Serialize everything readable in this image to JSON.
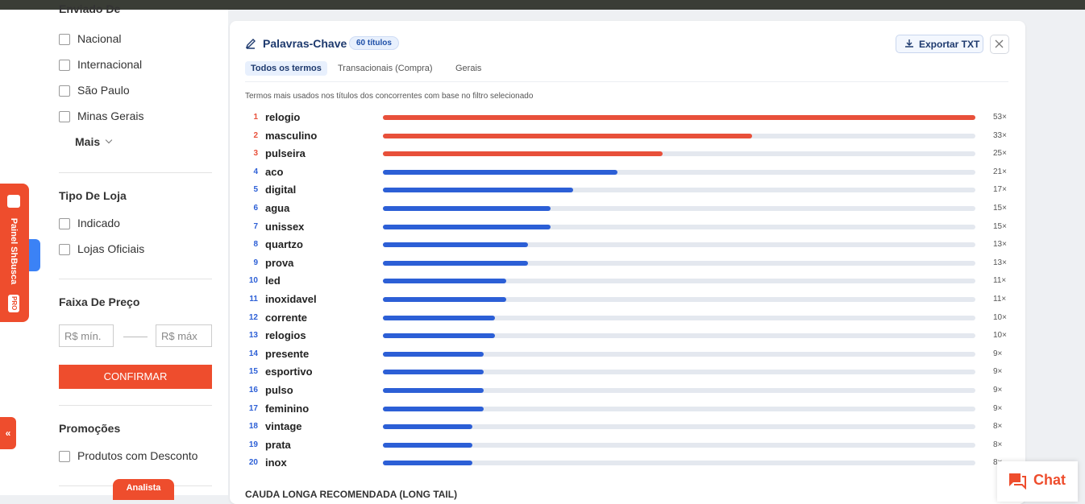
{
  "sidebar": {
    "shipped_from": {
      "title": "Enviado De",
      "options": [
        "Nacional",
        "Internacional",
        "São Paulo",
        "Minas Gerais"
      ],
      "more": "Mais"
    },
    "store_type": {
      "title": "Tipo De Loja",
      "options": [
        "Indicado",
        "Lojas Oficiais"
      ]
    },
    "price": {
      "title": "Faixa De Preço",
      "min_placeholder": "R$ mín.",
      "max_placeholder": "R$ máx",
      "button": "CONFIRMAR"
    },
    "promotions": {
      "title": "Promoções",
      "options": [
        "Produtos com Desconto"
      ]
    },
    "analyst_tab": "Analista"
  },
  "side_panel": {
    "label": "Painel ShBusca",
    "badge": "PRO",
    "collapse": "«"
  },
  "panel": {
    "title": "Palavras-Chave",
    "badge": "60 títulos",
    "export": "Exportar TXT",
    "tabs": [
      "Todos os termos",
      "Transacionais (Compra)",
      "Gerais"
    ],
    "description": "Termos mais usados nos títulos dos concorrentes com base no filtro selecionado",
    "keywords": [
      {
        "rank": "1",
        "term": "relogio",
        "count": 53,
        "count_label": "53×",
        "color": "#e8503a"
      },
      {
        "rank": "2",
        "term": "masculino",
        "count": 33,
        "count_label": "33×",
        "color": "#e8503a"
      },
      {
        "rank": "3",
        "term": "pulseira",
        "count": 25,
        "count_label": "25×",
        "color": "#e8503a"
      },
      {
        "rank": "4",
        "term": "aco",
        "count": 21,
        "count_label": "21×",
        "color": "#2c5fd6"
      },
      {
        "rank": "5",
        "term": "digital",
        "count": 17,
        "count_label": "17×",
        "color": "#2c5fd6"
      },
      {
        "rank": "6",
        "term": "agua",
        "count": 15,
        "count_label": "15×",
        "color": "#2c5fd6"
      },
      {
        "rank": "7",
        "term": "unissex",
        "count": 15,
        "count_label": "15×",
        "color": "#2c5fd6"
      },
      {
        "rank": "8",
        "term": "quartzo",
        "count": 13,
        "count_label": "13×",
        "color": "#2c5fd6"
      },
      {
        "rank": "9",
        "term": "prova",
        "count": 13,
        "count_label": "13×",
        "color": "#2c5fd6"
      },
      {
        "rank": "10",
        "term": "led",
        "count": 11,
        "count_label": "11×",
        "color": "#2c5fd6"
      },
      {
        "rank": "11",
        "term": "inoxidavel",
        "count": 11,
        "count_label": "11×",
        "color": "#2c5fd6"
      },
      {
        "rank": "12",
        "term": "corrente",
        "count": 10,
        "count_label": "10×",
        "color": "#2c5fd6"
      },
      {
        "rank": "13",
        "term": "relogios",
        "count": 10,
        "count_label": "10×",
        "color": "#2c5fd6"
      },
      {
        "rank": "14",
        "term": "presente",
        "count": 9,
        "count_label": "9×",
        "color": "#2c5fd6"
      },
      {
        "rank": "15",
        "term": "esportivo",
        "count": 9,
        "count_label": "9×",
        "color": "#2c5fd6"
      },
      {
        "rank": "16",
        "term": "pulso",
        "count": 9,
        "count_label": "9×",
        "color": "#2c5fd6"
      },
      {
        "rank": "17",
        "term": "feminino",
        "count": 9,
        "count_label": "9×",
        "color": "#2c5fd6"
      },
      {
        "rank": "18",
        "term": "vintage",
        "count": 8,
        "count_label": "8×",
        "color": "#2c5fd6"
      },
      {
        "rank": "19",
        "term": "prata",
        "count": 8,
        "count_label": "8×",
        "color": "#2c5fd6"
      },
      {
        "rank": "20",
        "term": "inox",
        "count": 8,
        "count_label": "8×",
        "color": "#2c5fd6"
      }
    ],
    "next_section": "CAUDA LONGA RECOMENDADA (LONG TAIL)"
  },
  "chat": "Chat"
}
